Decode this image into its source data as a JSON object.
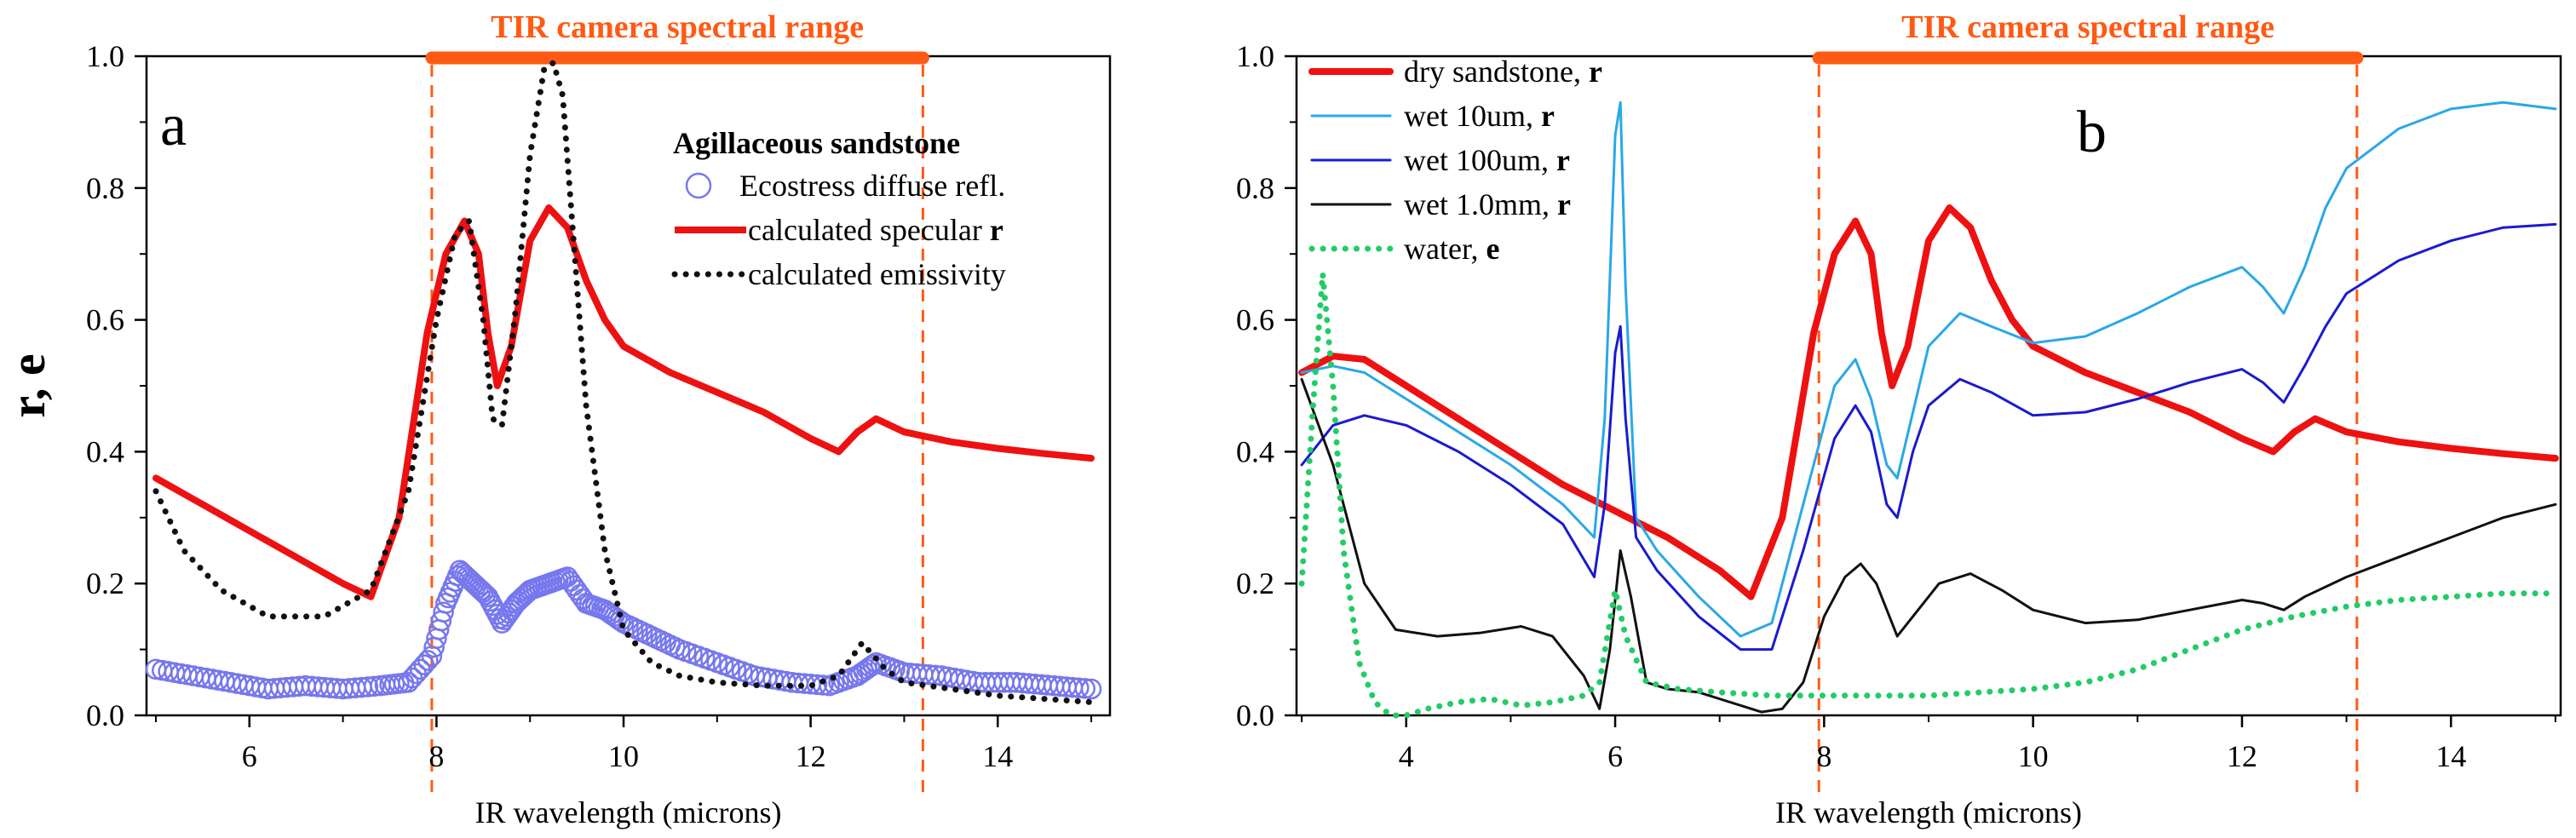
{
  "colors": {
    "dry_red": "#ee1111",
    "emissivity_black": "#111111",
    "ecostress_blue": "#7777ee",
    "wet10": "#29a8e8",
    "wet100": "#1a1ad0",
    "wet1mm": "#111111",
    "water_green": "#22cc66",
    "tir_orange": "#ff5a14",
    "axis": "#000000"
  },
  "chart_data": [
    {
      "id": "a",
      "type": "line",
      "panel_label": "a",
      "title": "TIR camera spectral range",
      "xlabel": "IR wavelength (microns)",
      "ylabel": "r, e",
      "xlim": [
        4.9,
        15.2
      ],
      "ylim": [
        0,
        1.0
      ],
      "xticks": [
        6,
        8,
        10,
        12,
        14
      ],
      "yticks": [
        0.0,
        0.2,
        0.4,
        0.6,
        0.8,
        1.0
      ],
      "tir_range": [
        7.95,
        13.2
      ],
      "legend_title": "Agillaceous sandstone",
      "legend_position": "top-right",
      "series": [
        {
          "name": "Ecostress diffuse refl.",
          "style": "circles",
          "color": "#7777ee",
          "x": [
            5.0,
            5.4,
            5.8,
            6.2,
            6.6,
            7.0,
            7.4,
            7.7,
            7.95,
            8.1,
            8.25,
            8.4,
            8.55,
            8.7,
            8.85,
            9.0,
            9.2,
            9.4,
            9.6,
            9.8,
            10.0,
            10.3,
            10.6,
            11.0,
            11.4,
            11.8,
            12.2,
            12.5,
            12.7,
            13.0,
            13.4,
            13.8,
            14.2,
            14.6,
            15.0
          ],
          "y": [
            0.07,
            0.06,
            0.05,
            0.04,
            0.045,
            0.04,
            0.045,
            0.05,
            0.09,
            0.17,
            0.22,
            0.2,
            0.18,
            0.14,
            0.17,
            0.19,
            0.2,
            0.21,
            0.17,
            0.16,
            0.14,
            0.12,
            0.1,
            0.08,
            0.06,
            0.05,
            0.045,
            0.06,
            0.08,
            0.065,
            0.06,
            0.05,
            0.05,
            0.045,
            0.04
          ]
        },
        {
          "name": "calculated specular r",
          "style": "thick",
          "color": "#ee1111",
          "x": [
            5.0,
            5.5,
            6.0,
            6.5,
            7.0,
            7.3,
            7.6,
            7.9,
            8.1,
            8.3,
            8.45,
            8.55,
            8.65,
            8.8,
            9.0,
            9.2,
            9.4,
            9.6,
            9.8,
            10.0,
            10.5,
            11.0,
            11.5,
            12.0,
            12.3,
            12.5,
            12.7,
            13.0,
            13.5,
            14.0,
            14.5,
            15.0
          ],
          "y": [
            0.36,
            0.32,
            0.28,
            0.24,
            0.2,
            0.18,
            0.3,
            0.58,
            0.7,
            0.75,
            0.7,
            0.58,
            0.5,
            0.56,
            0.72,
            0.77,
            0.74,
            0.66,
            0.6,
            0.56,
            0.52,
            0.49,
            0.46,
            0.42,
            0.4,
            0.43,
            0.45,
            0.43,
            0.415,
            0.405,
            0.397,
            0.39
          ]
        },
        {
          "name": "calculated emissivity",
          "style": "dotted",
          "color": "#111111",
          "x": [
            5.0,
            5.3,
            5.7,
            6.2,
            6.8,
            7.3,
            7.7,
            8.0,
            8.2,
            8.35,
            8.5,
            8.6,
            8.7,
            8.85,
            9.0,
            9.15,
            9.25,
            9.35,
            9.45,
            9.6,
            9.8,
            10.0,
            10.3,
            10.6,
            11.0,
            11.5,
            12.0,
            12.3,
            12.55,
            12.8,
            13.0,
            13.5,
            14.0,
            14.5,
            15.0
          ],
          "y": [
            0.34,
            0.25,
            0.19,
            0.15,
            0.15,
            0.19,
            0.34,
            0.6,
            0.73,
            0.75,
            0.6,
            0.45,
            0.44,
            0.62,
            0.85,
            0.98,
            0.99,
            0.94,
            0.75,
            0.47,
            0.25,
            0.13,
            0.08,
            0.06,
            0.05,
            0.045,
            0.045,
            0.06,
            0.11,
            0.07,
            0.05,
            0.04,
            0.03,
            0.025,
            0.02
          ]
        }
      ]
    },
    {
      "id": "b",
      "type": "line",
      "panel_label": "b",
      "title": "TIR camera spectral range",
      "xlabel": "IR wavelength (microns)",
      "ylabel": "",
      "xlim": [
        2.95,
        15.05
      ],
      "ylim": [
        0,
        1.0
      ],
      "xticks": [
        4,
        6,
        8,
        10,
        12,
        14
      ],
      "yticks": [
        0.0,
        0.2,
        0.4,
        0.6,
        0.8,
        1.0
      ],
      "tir_range": [
        7.95,
        13.1
      ],
      "legend_position": "top-left",
      "series": [
        {
          "name": "dry sandstone, ",
          "bold_suffix": "r",
          "style": "thick",
          "color": "#ee1111",
          "x": [
            3.0,
            3.3,
            3.6,
            4.0,
            4.5,
            5.0,
            5.5,
            6.0,
            6.5,
            7.0,
            7.3,
            7.6,
            7.9,
            8.1,
            8.3,
            8.45,
            8.55,
            8.65,
            8.8,
            9.0,
            9.2,
            9.4,
            9.6,
            9.8,
            10.0,
            10.5,
            11.0,
            11.5,
            12.0,
            12.3,
            12.5,
            12.7,
            13.0,
            13.5,
            14.0,
            14.5,
            15.0
          ],
          "y": [
            0.52,
            0.545,
            0.54,
            0.5,
            0.45,
            0.4,
            0.35,
            0.31,
            0.27,
            0.22,
            0.18,
            0.3,
            0.58,
            0.7,
            0.75,
            0.7,
            0.58,
            0.5,
            0.56,
            0.72,
            0.77,
            0.74,
            0.66,
            0.6,
            0.56,
            0.52,
            0.49,
            0.46,
            0.42,
            0.4,
            0.43,
            0.45,
            0.43,
            0.415,
            0.405,
            0.397,
            0.39
          ]
        },
        {
          "name": "wet 10um, ",
          "bold_suffix": "r",
          "style": "thin",
          "color": "#29a8e8",
          "x": [
            3.0,
            3.3,
            3.6,
            4.0,
            4.5,
            5.0,
            5.5,
            5.8,
            5.9,
            6.0,
            6.05,
            6.1,
            6.2,
            6.4,
            6.8,
            7.2,
            7.5,
            7.8,
            8.1,
            8.3,
            8.45,
            8.6,
            8.7,
            8.85,
            9.0,
            9.3,
            9.6,
            10.0,
            10.5,
            11.0,
            11.5,
            12.0,
            12.2,
            12.4,
            12.6,
            12.8,
            13.0,
            13.5,
            14.0,
            14.5,
            15.0
          ],
          "y": [
            0.52,
            0.53,
            0.52,
            0.48,
            0.43,
            0.38,
            0.32,
            0.27,
            0.45,
            0.88,
            0.93,
            0.65,
            0.3,
            0.25,
            0.18,
            0.12,
            0.14,
            0.32,
            0.5,
            0.54,
            0.48,
            0.38,
            0.36,
            0.46,
            0.56,
            0.61,
            0.59,
            0.565,
            0.575,
            0.61,
            0.65,
            0.68,
            0.65,
            0.61,
            0.68,
            0.77,
            0.83,
            0.89,
            0.92,
            0.93,
            0.92
          ]
        },
        {
          "name": "wet 100um, ",
          "bold_suffix": "r",
          "style": "thin",
          "color": "#1a1ad0",
          "x": [
            3.0,
            3.3,
            3.6,
            4.0,
            4.5,
            5.0,
            5.5,
            5.8,
            5.9,
            6.0,
            6.05,
            6.1,
            6.2,
            6.4,
            6.8,
            7.2,
            7.5,
            7.8,
            8.1,
            8.3,
            8.45,
            8.6,
            8.7,
            8.85,
            9.0,
            9.3,
            9.6,
            10.0,
            10.5,
            11.0,
            11.5,
            12.0,
            12.2,
            12.4,
            12.6,
            12.8,
            13.0,
            13.5,
            14.0,
            14.5,
            15.0
          ],
          "y": [
            0.38,
            0.44,
            0.455,
            0.44,
            0.4,
            0.35,
            0.29,
            0.21,
            0.32,
            0.55,
            0.59,
            0.45,
            0.27,
            0.22,
            0.15,
            0.1,
            0.1,
            0.25,
            0.42,
            0.47,
            0.43,
            0.32,
            0.3,
            0.4,
            0.47,
            0.51,
            0.49,
            0.455,
            0.46,
            0.48,
            0.505,
            0.525,
            0.505,
            0.475,
            0.53,
            0.59,
            0.64,
            0.69,
            0.72,
            0.74,
            0.745
          ]
        },
        {
          "name": "wet 1.0mm, ",
          "bold_suffix": "r",
          "style": "thin",
          "color": "#111111",
          "x": [
            3.0,
            3.3,
            3.6,
            3.9,
            4.3,
            4.7,
            5.1,
            5.4,
            5.7,
            5.85,
            5.95,
            6.05,
            6.15,
            6.3,
            6.5,
            6.8,
            7.1,
            7.4,
            7.6,
            7.8,
            8.0,
            8.2,
            8.35,
            8.5,
            8.7,
            8.9,
            9.1,
            9.4,
            9.7,
            10.0,
            10.5,
            11.0,
            11.5,
            12.0,
            12.2,
            12.4,
            12.6,
            13.0,
            13.5,
            14.0,
            14.5,
            15.0
          ],
          "y": [
            0.51,
            0.38,
            0.2,
            0.13,
            0.12,
            0.125,
            0.135,
            0.12,
            0.06,
            0.01,
            0.1,
            0.25,
            0.18,
            0.05,
            0.04,
            0.035,
            0.02,
            0.005,
            0.01,
            0.05,
            0.15,
            0.21,
            0.23,
            0.2,
            0.12,
            0.16,
            0.2,
            0.215,
            0.19,
            0.16,
            0.14,
            0.145,
            0.16,
            0.175,
            0.17,
            0.16,
            0.18,
            0.21,
            0.24,
            0.27,
            0.3,
            0.32
          ]
        },
        {
          "name": "water, ",
          "bold_suffix": "e",
          "style": "dotted",
          "color": "#22cc66",
          "x": [
            3.0,
            3.1,
            3.2,
            3.3,
            3.4,
            3.55,
            3.7,
            3.85,
            4.0,
            4.2,
            4.5,
            4.8,
            5.1,
            5.4,
            5.7,
            5.85,
            6.0,
            6.1,
            6.3,
            6.6,
            7.0,
            7.5,
            8.0,
            8.5,
            9.0,
            9.5,
            10.0,
            10.5,
            11.0,
            11.5,
            12.0,
            12.5,
            13.0,
            13.5,
            14.0,
            14.5,
            15.0
          ],
          "y": [
            0.2,
            0.45,
            0.67,
            0.5,
            0.25,
            0.08,
            0.02,
            0.0,
            0.0,
            0.01,
            0.02,
            0.025,
            0.015,
            0.02,
            0.03,
            0.05,
            0.19,
            0.12,
            0.05,
            0.04,
            0.035,
            0.03,
            0.03,
            0.03,
            0.03,
            0.035,
            0.04,
            0.05,
            0.07,
            0.1,
            0.13,
            0.15,
            0.165,
            0.175,
            0.18,
            0.185,
            0.185
          ]
        }
      ]
    }
  ]
}
